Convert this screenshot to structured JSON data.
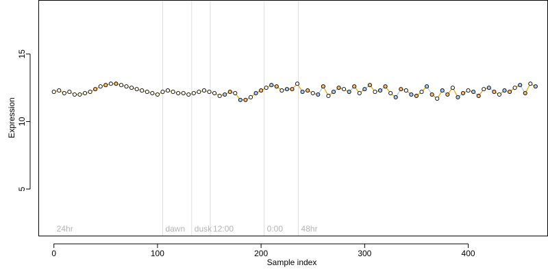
{
  "chart_data": {
    "type": "scatter",
    "title": "",
    "xlabel": "Sample index",
    "ylabel": "Expression",
    "xlim": [
      -15,
      477
    ],
    "ylim": [
      1.5,
      19.0
    ],
    "x_ticks": [
      0,
      100,
      200,
      300,
      400
    ],
    "y_ticks": [
      5,
      10,
      15
    ],
    "grid": false,
    "legend": "none",
    "annotations": [
      {
        "label": "24hr",
        "x": 0,
        "line": false
      },
      {
        "label": "dawn",
        "x": 105,
        "line": true
      },
      {
        "label": "dusk",
        "x": 133,
        "line": true
      },
      {
        "label": "12:00",
        "x": 151,
        "line": true
      },
      {
        "label": "0:00",
        "x": 203,
        "line": true
      },
      {
        "label": "48hr",
        "x": 236,
        "line": true
      }
    ],
    "colors": {
      "line": "#e69f00",
      "point_light": "#a6c8e8",
      "point_orange": "#f5b971",
      "point_white": "#ffffff",
      "point_stroke": "#000000",
      "annotation": "#b3b3b3"
    },
    "series": [
      {
        "x": [
          0,
          5,
          10,
          15,
          20,
          25,
          30,
          35,
          40,
          45,
          50,
          55,
          60,
          65,
          70,
          75,
          80,
          85,
          90,
          95,
          100,
          105,
          110,
          115,
          120,
          125,
          130,
          135,
          140,
          145,
          150,
          155,
          160,
          165,
          170,
          175,
          180,
          185,
          190,
          195,
          200,
          205,
          210,
          215,
          220,
          225,
          230,
          235,
          240,
          245,
          250,
          255,
          260,
          265,
          270,
          275,
          280,
          285,
          290,
          295,
          300,
          305,
          310,
          315,
          320,
          325,
          330,
          335,
          340,
          345,
          350,
          355,
          360,
          365,
          370,
          375,
          380,
          385,
          390,
          395,
          400,
          405,
          410,
          415,
          420,
          425,
          430,
          435,
          440,
          445,
          450,
          455,
          460,
          465
        ],
        "y": [
          12.2,
          12.3,
          12.1,
          12.2,
          12.0,
          12.0,
          12.1,
          12.2,
          12.4,
          12.6,
          12.7,
          12.8,
          12.8,
          12.7,
          12.6,
          12.5,
          12.4,
          12.3,
          12.2,
          12.1,
          12.0,
          12.2,
          12.3,
          12.2,
          12.1,
          12.1,
          12.0,
          12.1,
          12.2,
          12.3,
          12.2,
          12.1,
          11.9,
          12.0,
          12.2,
          12.1,
          11.6,
          11.6,
          11.8,
          12.1,
          12.3,
          12.5,
          12.7,
          12.6,
          12.3,
          12.4,
          12.4,
          12.8,
          12.2,
          12.3,
          12.1,
          12.0,
          12.6,
          11.9,
          12.2,
          12.5,
          12.4,
          12.2,
          12.6,
          12.1,
          12.4,
          12.7,
          12.2,
          12.3,
          12.6,
          12.1,
          11.8,
          12.4,
          12.3,
          12.0,
          11.9,
          12.2,
          12.6,
          12.0,
          11.7,
          12.3,
          12.0,
          12.5,
          11.8,
          12.1,
          12.3,
          12.2,
          11.9,
          12.4,
          12.5,
          12.2,
          12.0,
          12.3,
          12.2,
          12.5,
          12.7,
          12.1,
          12.8,
          12.6
        ]
      }
    ]
  }
}
